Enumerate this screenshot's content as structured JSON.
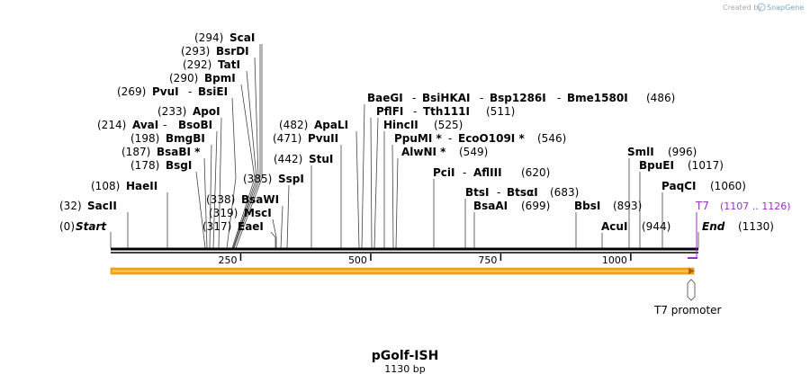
{
  "watermark": {
    "text": "Created by",
    "brand": "SnapGene"
  },
  "map": {
    "name": "pGolf-ISH",
    "length_label": "1130 bp",
    "total_bp": 1130,
    "ticks": [
      250,
      500,
      750,
      1000
    ],
    "start": {
      "pos": "(0)",
      "label": "Start"
    },
    "end": {
      "pos": "(1130)",
      "label": "End"
    }
  },
  "sites": [
    {
      "pos": "(32)",
      "names": [
        "SacII"
      ],
      "bp": 32
    },
    {
      "pos": "(108)",
      "names": [
        "HaeII"
      ],
      "bp": 108
    },
    {
      "pos": "(178)",
      "names": [
        "BsgI"
      ],
      "bp": 178
    },
    {
      "pos": "(187)",
      "names": [
        "BsaBI *"
      ],
      "bp": 187
    },
    {
      "pos": "(198)",
      "names": [
        "BmgBI"
      ],
      "bp": 198
    },
    {
      "pos": "(214)",
      "names": [
        "AvaI",
        "BsoBI"
      ],
      "bp": 214
    },
    {
      "pos": "(233)",
      "names": [
        "ApoI"
      ],
      "bp": 233
    },
    {
      "pos": "(269)",
      "names": [
        "PvuI",
        "BsiEI"
      ],
      "bp": 269
    },
    {
      "pos": "(290)",
      "names": [
        "BpmI"
      ],
      "bp": 290
    },
    {
      "pos": "(292)",
      "names": [
        "TatI"
      ],
      "bp": 292
    },
    {
      "pos": "(293)",
      "names": [
        "BsrDI"
      ],
      "bp": 293
    },
    {
      "pos": "(294)",
      "names": [
        "ScaI"
      ],
      "bp": 294
    },
    {
      "pos": "(317)",
      "names": [
        "EaeI"
      ],
      "bp": 317
    },
    {
      "pos": "(319)",
      "names": [
        "MscI"
      ],
      "bp": 319
    },
    {
      "pos": "(338)",
      "names": [
        "BsaWI"
      ],
      "bp": 338
    },
    {
      "pos": "(385)",
      "names": [
        "SspI"
      ],
      "bp": 385
    },
    {
      "pos": "(442)",
      "names": [
        "StuI"
      ],
      "bp": 442
    },
    {
      "pos": "(471)",
      "names": [
        "PvuII"
      ],
      "bp": 471
    },
    {
      "pos": "(482)",
      "names": [
        "ApaLI"
      ],
      "bp": 482
    },
    {
      "pos": "(486)",
      "names": [
        "BaeGI",
        "BsiHKAI",
        "Bsp1286I",
        "Bme1580I"
      ],
      "bp": 486
    },
    {
      "pos": "(511)",
      "names": [
        "PflFI",
        "Tth111I"
      ],
      "bp": 511
    },
    {
      "pos": "(525)",
      "names": [
        "HincII"
      ],
      "bp": 525
    },
    {
      "pos": "(546)",
      "names": [
        "PpuMI *",
        "EcoO109I *"
      ],
      "bp": 546
    },
    {
      "pos": "(549)",
      "names": [
        "AlwNI *"
      ],
      "bp": 549
    },
    {
      "pos": "(620)",
      "names": [
        "PciI",
        "AflIII"
      ],
      "bp": 620
    },
    {
      "pos": "(683)",
      "names": [
        "BtsI",
        "BtsαI"
      ],
      "bp": 683
    },
    {
      "pos": "(699)",
      "names": [
        "BsaAI"
      ],
      "bp": 699
    },
    {
      "pos": "(893)",
      "names": [
        "BbsI"
      ],
      "bp": 893
    },
    {
      "pos": "(944)",
      "names": [
        "AcuI"
      ],
      "bp": 944
    },
    {
      "pos": "(996)",
      "names": [
        "SmlI"
      ],
      "bp": 996
    },
    {
      "pos": "(1017)",
      "names": [
        "BpuEI"
      ],
      "bp": 1017
    },
    {
      "pos": "(1060)",
      "names": [
        "PaqCI"
      ],
      "bp": 1060
    }
  ],
  "features": {
    "t7": {
      "label": "T7",
      "range": "(1107 .. 1126)"
    },
    "t7_promoter": {
      "label": "T7 promoter"
    }
  },
  "colors": {
    "feature_bar": "#f5a623",
    "t7": "#9b30c8",
    "backbone": "#000000"
  }
}
